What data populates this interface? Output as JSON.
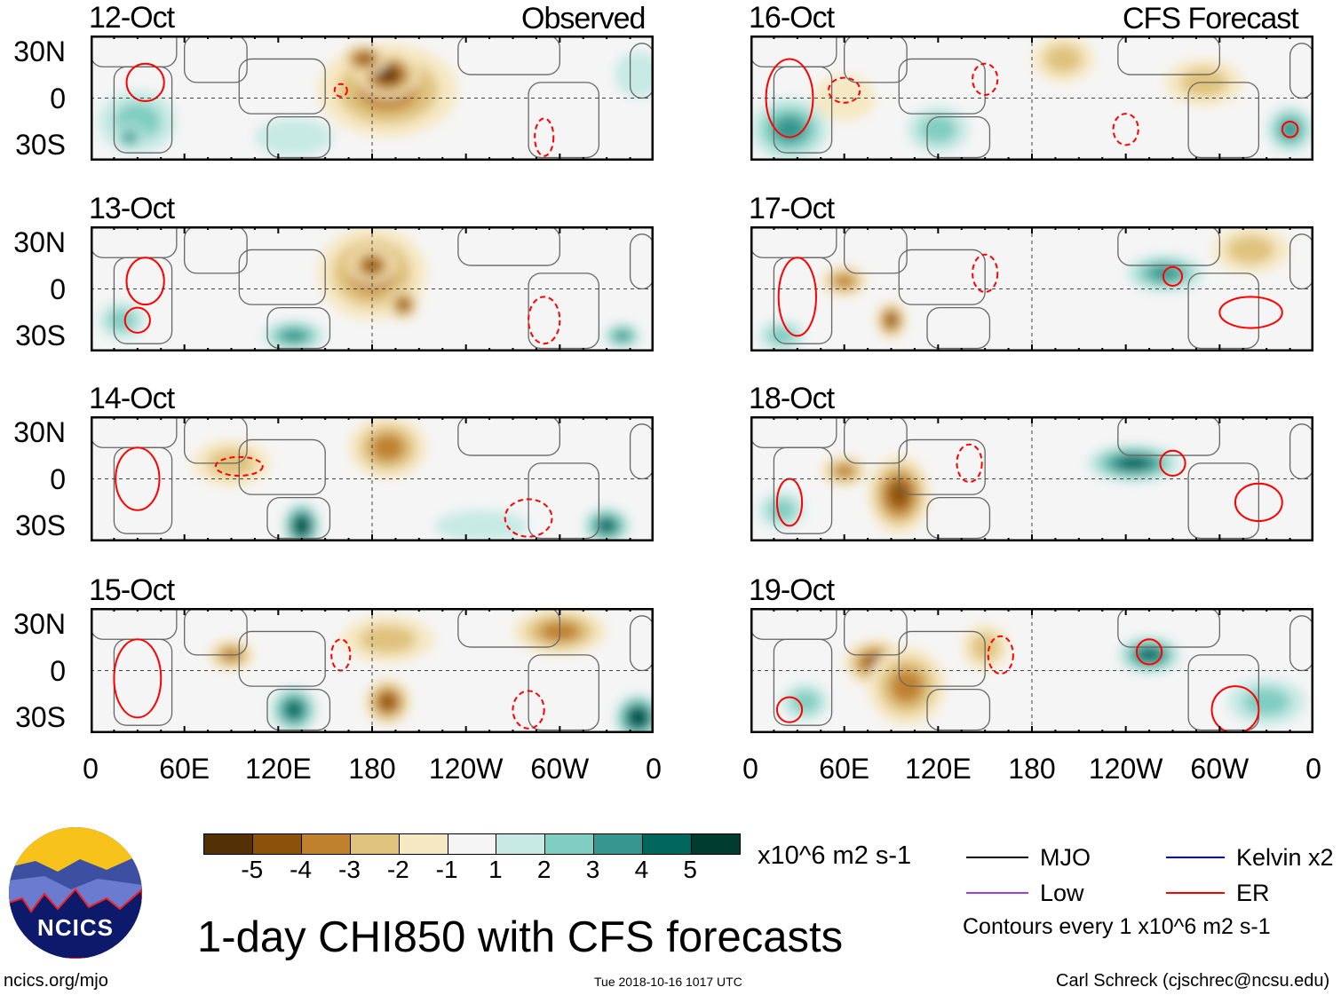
{
  "header": {
    "observed_label": "Observed",
    "forecast_label": "CFS Forecast"
  },
  "lat_labels": [
    "30N",
    "0",
    "30S"
  ],
  "lon_labels": [
    "0",
    "60E",
    "120E",
    "180",
    "120W",
    "60W",
    "0"
  ],
  "colorbar": {
    "labels": [
      "-5",
      "-4",
      "-3",
      "-2",
      "-1",
      "1",
      "2",
      "3",
      "4",
      "5"
    ],
    "colors": [
      "#543005",
      "#8c510a",
      "#bf812d",
      "#dfc27d",
      "#f6e8c3",
      "#f5f5f5",
      "#c7eae5",
      "#80cdc1",
      "#35978f",
      "#01665e",
      "#003c30"
    ],
    "units": "x10^6 m2 s-1"
  },
  "legend": {
    "items": [
      {
        "label": "MJO",
        "color": "#000000"
      },
      {
        "label": "Kelvin x2",
        "color": "#0000ff"
      },
      {
        "label": "Low",
        "color": "#a040e0"
      },
      {
        "label": "ER",
        "color": "#ff0000"
      }
    ],
    "contours_note": "Contours every 1 x10^6 m2 s-1"
  },
  "title": "1-day CHI850 with CFS forecasts",
  "logo_text": "NCICS",
  "footer": {
    "url": "ncics.org/mjo",
    "timestamp": "Tue 2018-10-16 1017 UTC",
    "author": "Carl Schreck (cjschrec@ncsu.edu)"
  },
  "chart_data": {
    "type": "heatmap",
    "variable": "CHI850 anomaly",
    "units": "x10^6 m2 s-1",
    "lon_range": [
      0,
      360
    ],
    "lat_range": [
      -40,
      40
    ],
    "panels": [
      {
        "date": "12-Oct",
        "type": "observed",
        "anomalies": [
          [
            190,
            5,
            -3,
            45,
            30
          ],
          [
            190,
            15,
            -5,
            20,
            15
          ],
          [
            175,
            25,
            -4,
            15,
            10
          ],
          [
            30,
            -15,
            2,
            25,
            20
          ],
          [
            25,
            -25,
            3,
            10,
            8
          ],
          [
            350,
            15,
            1,
            15,
            15
          ],
          [
            130,
            -25,
            1,
            25,
            12
          ]
        ],
        "er_contours": [
          [
            35,
            10,
            12,
            12,
            false
          ],
          [
            160,
            5,
            4,
            4,
            true
          ],
          [
            290,
            -25,
            6,
            12,
            true
          ]
        ]
      },
      {
        "date": "13-Oct",
        "type": "observed",
        "anomalies": [
          [
            180,
            10,
            -3,
            35,
            30
          ],
          [
            180,
            15,
            -4,
            15,
            12
          ],
          [
            200,
            -10,
            -4,
            10,
            10
          ],
          [
            130,
            -30,
            3,
            20,
            10
          ],
          [
            340,
            -30,
            3,
            12,
            8
          ],
          [
            20,
            -20,
            2,
            15,
            12
          ]
        ],
        "er_contours": [
          [
            35,
            5,
            12,
            15,
            false
          ],
          [
            30,
            -20,
            8,
            8,
            false
          ],
          [
            290,
            -20,
            10,
            15,
            true
          ]
        ]
      },
      {
        "date": "14-Oct",
        "type": "observed",
        "anomalies": [
          [
            190,
            20,
            -3,
            25,
            20
          ],
          [
            90,
            10,
            -2,
            25,
            15
          ],
          [
            135,
            -30,
            5,
            12,
            15
          ],
          [
            330,
            -30,
            4,
            15,
            12
          ],
          [
            250,
            -30,
            1,
            30,
            10
          ]
        ],
        "er_contours": [
          [
            30,
            0,
            14,
            20,
            false
          ],
          [
            95,
            8,
            15,
            6,
            true
          ],
          [
            280,
            -25,
            15,
            12,
            true
          ]
        ]
      },
      {
        "date": "15-Oct",
        "type": "observed",
        "anomalies": [
          [
            190,
            -20,
            -4,
            15,
            15
          ],
          [
            190,
            20,
            -2,
            30,
            15
          ],
          [
            300,
            25,
            -3,
            30,
            15
          ],
          [
            90,
            10,
            -3,
            15,
            10
          ],
          [
            130,
            -25,
            4,
            15,
            15
          ],
          [
            350,
            -30,
            5,
            15,
            15
          ]
        ],
        "er_contours": [
          [
            30,
            -5,
            15,
            25,
            false
          ],
          [
            160,
            10,
            6,
            10,
            true
          ],
          [
            280,
            -25,
            10,
            12,
            true
          ]
        ]
      },
      {
        "date": "16-Oct",
        "type": "forecast",
        "anomalies": [
          [
            25,
            -20,
            3,
            25,
            20
          ],
          [
            120,
            -20,
            2,
            20,
            15
          ],
          [
            345,
            -20,
            3,
            15,
            15
          ],
          [
            290,
            10,
            -2,
            25,
            15
          ],
          [
            200,
            25,
            -2,
            20,
            15
          ],
          [
            60,
            0,
            -1,
            20,
            15
          ]
        ],
        "er_contours": [
          [
            25,
            0,
            15,
            25,
            false
          ],
          [
            60,
            5,
            10,
            8,
            true
          ],
          [
            150,
            12,
            8,
            10,
            true
          ],
          [
            345,
            -20,
            5,
            5,
            false
          ],
          [
            240,
            -20,
            8,
            10,
            true
          ]
        ]
      },
      {
        "date": "17-Oct",
        "type": "forecast",
        "anomalies": [
          [
            60,
            5,
            -3,
            15,
            10
          ],
          [
            90,
            -20,
            -4,
            10,
            12
          ],
          [
            265,
            10,
            3,
            25,
            12
          ],
          [
            20,
            -30,
            2,
            15,
            10
          ],
          [
            320,
            25,
            -2,
            25,
            15
          ]
        ],
        "er_contours": [
          [
            30,
            -5,
            12,
            25,
            false
          ],
          [
            150,
            10,
            8,
            12,
            true
          ],
          [
            270,
            8,
            6,
            6,
            false
          ],
          [
            320,
            -15,
            20,
            10,
            false
          ]
        ]
      },
      {
        "date": "18-Oct",
        "type": "forecast",
        "anomalies": [
          [
            95,
            -10,
            -4,
            20,
            25
          ],
          [
            60,
            5,
            -3,
            15,
            10
          ],
          [
            245,
            10,
            4,
            30,
            12
          ],
          [
            20,
            -20,
            2,
            15,
            12
          ]
        ],
        "er_contours": [
          [
            25,
            -15,
            8,
            15,
            false
          ],
          [
            140,
            10,
            8,
            12,
            true
          ],
          [
            270,
            10,
            8,
            8,
            false
          ],
          [
            325,
            -15,
            15,
            12,
            false
          ]
        ]
      },
      {
        "date": "19-Oct",
        "type": "forecast",
        "anomalies": [
          [
            80,
            5,
            -4,
            20,
            15
          ],
          [
            100,
            -10,
            -3,
            25,
            25
          ],
          [
            150,
            15,
            -2,
            15,
            15
          ],
          [
            255,
            10,
            4,
            20,
            12
          ],
          [
            35,
            -20,
            2,
            15,
            12
          ],
          [
            330,
            -20,
            2,
            25,
            15
          ]
        ],
        "er_contours": [
          [
            25,
            -25,
            8,
            8,
            false
          ],
          [
            160,
            10,
            8,
            12,
            true
          ],
          [
            255,
            12,
            8,
            8,
            false
          ],
          [
            310,
            -25,
            15,
            15,
            false
          ]
        ]
      }
    ]
  }
}
